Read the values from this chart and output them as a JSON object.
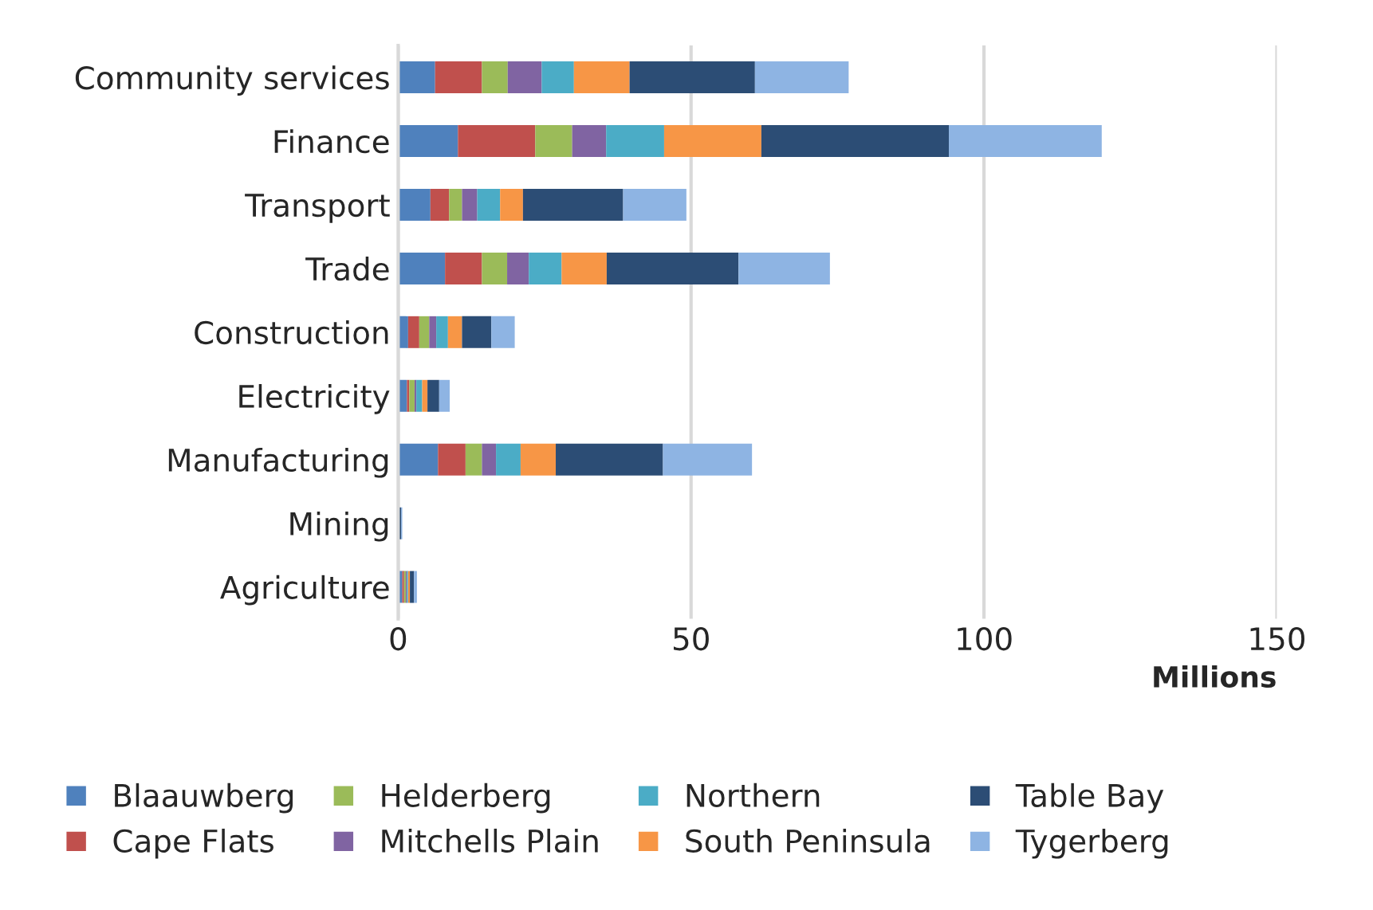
{
  "chart_data": {
    "type": "bar",
    "orientation": "horizontal",
    "stacked": true,
    "xlabel": "Millions",
    "categories": [
      "Community services",
      "Finance",
      "Transport",
      "Trade",
      "Construction",
      "Electricity",
      "Manufacturing",
      "Mining",
      "Agriculture"
    ],
    "series": [
      {
        "name": "Blaauwberg",
        "color": "#4f81bd",
        "values": [
          6.3,
          10.2,
          5.5,
          8.0,
          1.7,
          1.5,
          6.8,
          0.2,
          0.7
        ]
      },
      {
        "name": "Cape Flats",
        "color": "#c0504d",
        "values": [
          8.0,
          13.2,
          3.2,
          6.3,
          1.9,
          0.4,
          4.7,
          0,
          0.3
        ]
      },
      {
        "name": "Helderberg",
        "color": "#9bbb59",
        "values": [
          4.4,
          6.3,
          2.2,
          4.3,
          1.7,
          0.9,
          2.8,
          0,
          0.3
        ]
      },
      {
        "name": "Mitchells Plain",
        "color": "#8064a2",
        "values": [
          5.8,
          5.8,
          2.6,
          3.7,
          1.2,
          0.3,
          2.4,
          0,
          0.2
        ]
      },
      {
        "name": "Northern",
        "color": "#4bacc6",
        "values": [
          5.5,
          9.9,
          3.9,
          5.6,
          2.0,
          1.0,
          4.2,
          0,
          0.2
        ]
      },
      {
        "name": "South Peninsula",
        "color": "#f79646",
        "values": [
          9.5,
          16.6,
          3.9,
          7.7,
          2.4,
          0.9,
          6.0,
          0,
          0.3
        ]
      },
      {
        "name": "Table Bay",
        "color": "#2c4d75",
        "values": [
          21.4,
          32.0,
          17.1,
          22.5,
          5.0,
          2.0,
          18.3,
          0.3,
          0.7
        ]
      },
      {
        "name": "Tygerberg",
        "color": "#8eb4e3",
        "values": [
          16.0,
          26.1,
          10.8,
          15.6,
          4.0,
          1.8,
          15.2,
          0.2,
          0.5
        ]
      }
    ],
    "xlim": [
      0,
      150
    ],
    "xticks": [
      0,
      50,
      100,
      150
    ],
    "grid": "x",
    "legend": "bottom"
  }
}
